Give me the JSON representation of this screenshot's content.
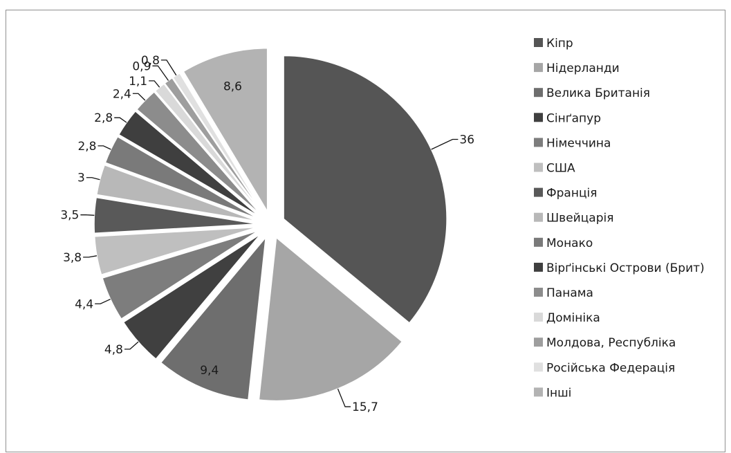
{
  "chart_data": {
    "type": "pie",
    "categories": [
      "Кіпр",
      "Нідерланди",
      "Велика Британія",
      "Сінґапур",
      "Німеччина",
      "США",
      "Франція",
      "Швейцарія",
      "Монако",
      "Вірґінські Острови (Брит)",
      "Панама",
      "Домініка",
      "Молдова, Республіка",
      "Російська Федерація",
      "Інші"
    ],
    "values": [
      36,
      15.7,
      9.4,
      4.8,
      4.4,
      3.8,
      3.5,
      3,
      2.8,
      2.8,
      2.4,
      1.1,
      0.9,
      0.8,
      8.6
    ],
    "value_labels": [
      "36",
      "15,7",
      "9,4",
      "4,8",
      "4,4",
      "3,8",
      "3,5",
      "3",
      "2,8",
      "2,8",
      "2,4",
      "1,1",
      "0,9",
      "0,8",
      "8,6"
    ],
    "colors": [
      "#555555",
      "#a6a6a6",
      "#6e6e6e",
      "#404040",
      "#7d7d7d",
      "#bfbfbf",
      "#595959",
      "#b8b8b8",
      "#7a7a7a",
      "#3f3f3f",
      "#8c8c8c",
      "#d9d9d9",
      "#9e9e9e",
      "#e0e0e0",
      "#b3b3b3"
    ],
    "exploded": true,
    "legend_position": "right"
  }
}
